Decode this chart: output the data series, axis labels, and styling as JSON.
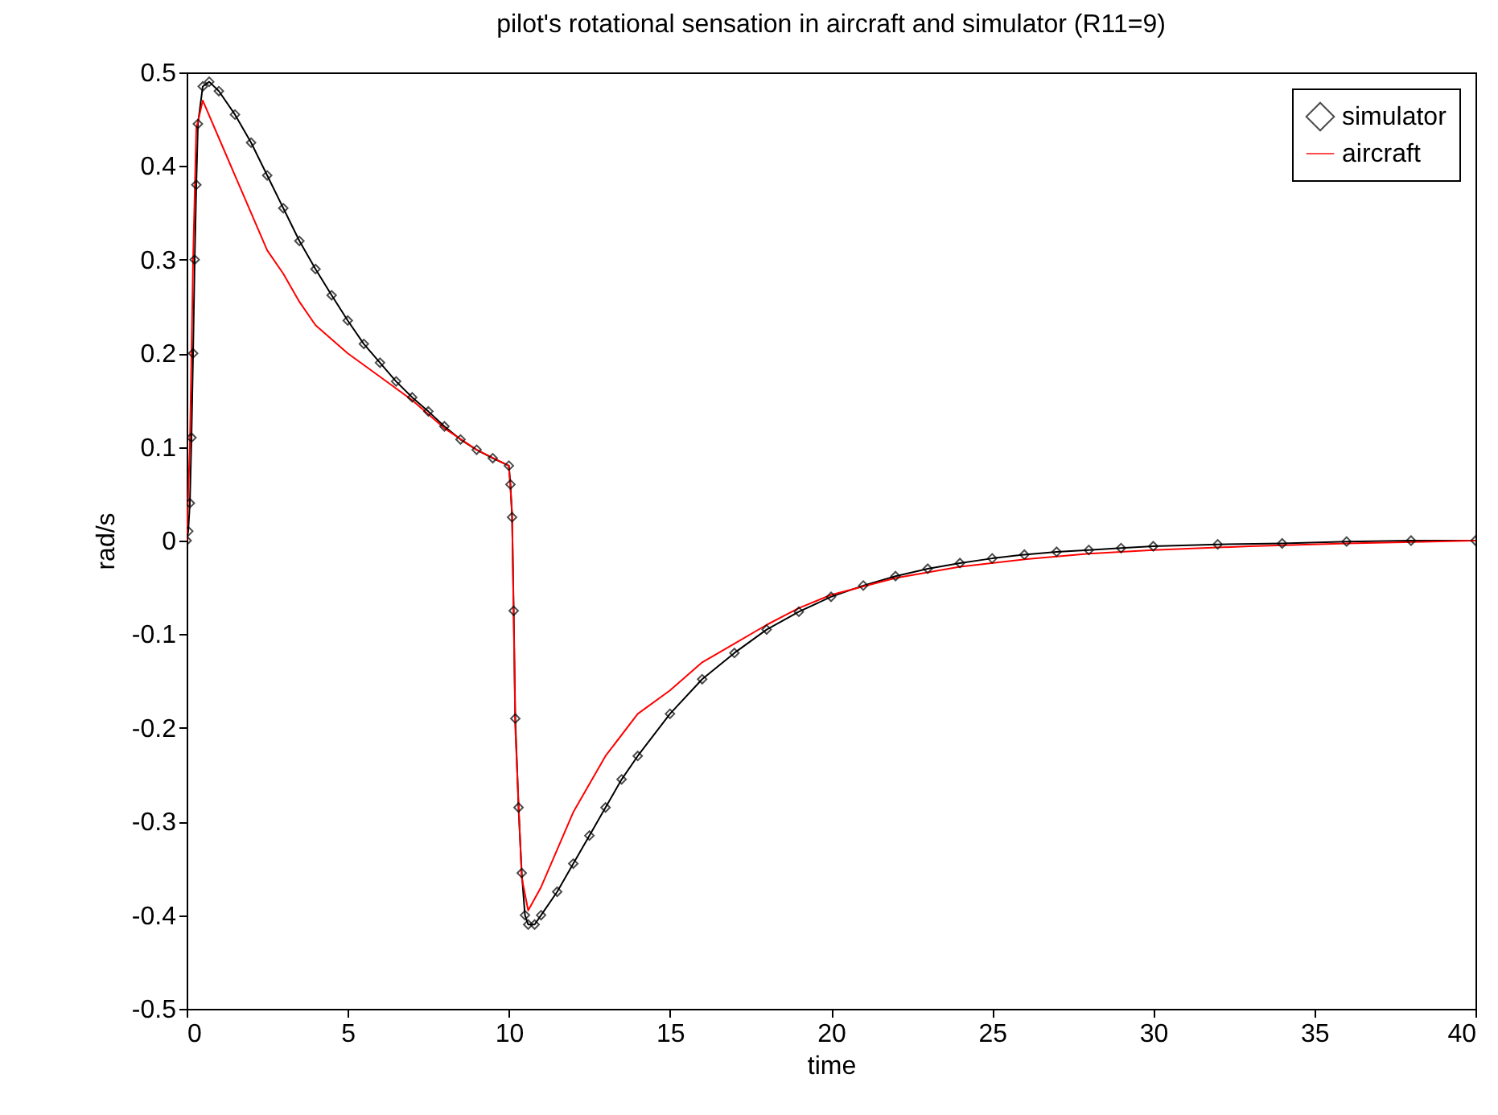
{
  "chart_data": {
    "type": "line",
    "title": "pilot's rotational sensation in aircraft and  simulator (R11=9)",
    "xlabel": "time",
    "ylabel": "rad/s",
    "xlim": [
      0,
      40
    ],
    "ylim": [
      -0.5,
      0.5
    ],
    "xticks": [
      0,
      5,
      10,
      15,
      20,
      25,
      30,
      35,
      40
    ],
    "yticks": [
      -0.5,
      -0.4,
      -0.3,
      -0.2,
      -0.1,
      0,
      0.1,
      0.2,
      0.3,
      0.4,
      0.5
    ],
    "grid": false,
    "legend": "top right",
    "line_style": "solid",
    "series": [
      {
        "name": "simulator",
        "color": "#000000",
        "marker": "diamond",
        "x": [
          0,
          0.05,
          0.1,
          0.15,
          0.2,
          0.25,
          0.3,
          0.35,
          0.5,
          0.7,
          1,
          1.5,
          2,
          2.5,
          3,
          3.5,
          4,
          4.5,
          5,
          5.5,
          6,
          6.5,
          7,
          7.5,
          8,
          8.5,
          9,
          9.5,
          10,
          10.05,
          10.1,
          10.15,
          10.2,
          10.3,
          10.4,
          10.5,
          10.6,
          10.8,
          11,
          11.5,
          12,
          12.5,
          13,
          13.5,
          14,
          15,
          16,
          17,
          18,
          19,
          20,
          21,
          22,
          23,
          24,
          25,
          26,
          27,
          28,
          29,
          30,
          32,
          34,
          36,
          38,
          40
        ],
        "values": [
          0,
          0.01,
          0.04,
          0.11,
          0.2,
          0.3,
          0.38,
          0.445,
          0.485,
          0.49,
          0.48,
          0.455,
          0.425,
          0.39,
          0.355,
          0.32,
          0.29,
          0.262,
          0.235,
          0.21,
          0.19,
          0.17,
          0.153,
          0.138,
          0.122,
          0.108,
          0.097,
          0.088,
          0.08,
          0.06,
          0.025,
          -0.075,
          -0.19,
          -0.285,
          -0.355,
          -0.4,
          -0.41,
          -0.41,
          -0.4,
          -0.375,
          -0.345,
          -0.315,
          -0.285,
          -0.255,
          -0.23,
          -0.185,
          -0.148,
          -0.12,
          -0.095,
          -0.076,
          -0.06,
          -0.048,
          -0.038,
          -0.03,
          -0.024,
          -0.019,
          -0.015,
          -0.012,
          -0.01,
          -0.008,
          -0.006,
          -0.004,
          -0.003,
          -0.001,
          0,
          0
        ]
      },
      {
        "name": "aircraft",
        "color": "#ff0000",
        "marker": "none",
        "x": [
          0,
          0.1,
          0.2,
          0.3,
          0.5,
          1,
          1.5,
          2,
          2.5,
          3,
          3.5,
          4,
          4.5,
          5,
          6,
          7,
          8,
          9,
          10,
          10.1,
          10.2,
          10.4,
          10.6,
          11,
          11.5,
          12,
          13,
          14,
          15,
          16,
          17,
          18,
          19,
          20,
          22,
          24,
          26,
          28,
          30,
          33,
          36,
          40
        ],
        "values": [
          0,
          0.1,
          0.3,
          0.44,
          0.47,
          0.43,
          0.39,
          0.35,
          0.31,
          0.285,
          0.255,
          0.23,
          0.215,
          0.2,
          0.175,
          0.15,
          0.12,
          0.097,
          0.08,
          0.03,
          -0.2,
          -0.36,
          -0.395,
          -0.37,
          -0.33,
          -0.29,
          -0.23,
          -0.185,
          -0.16,
          -0.13,
          -0.11,
          -0.09,
          -0.072,
          -0.058,
          -0.04,
          -0.028,
          -0.02,
          -0.014,
          -0.01,
          -0.006,
          -0.003,
          0
        ]
      }
    ]
  }
}
